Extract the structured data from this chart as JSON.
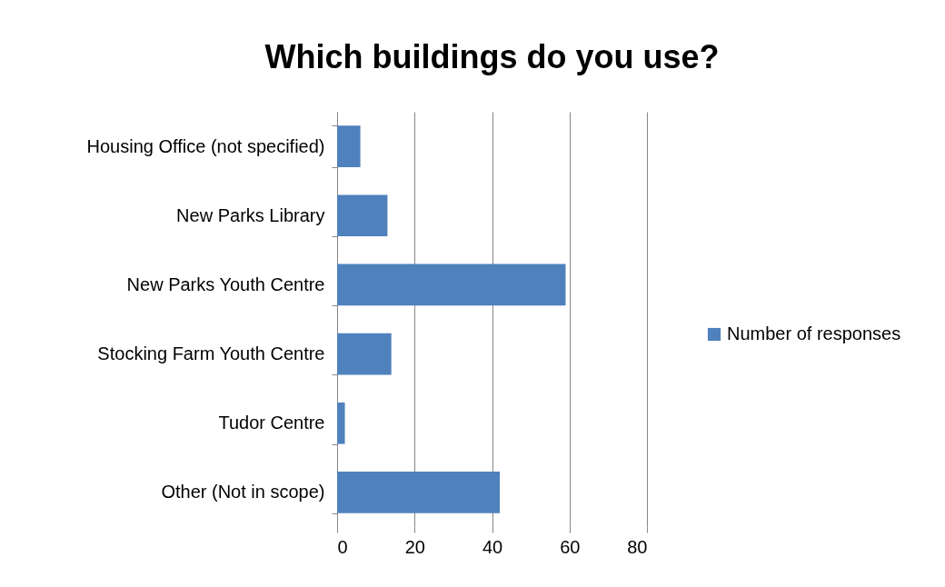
{
  "chart_data": {
    "type": "bar",
    "orientation": "horizontal",
    "title": "Which buildings do you use?",
    "categories": [
      "Housing Office (not specified)",
      "New Parks Library",
      "New Parks Youth Centre",
      "Stocking Farm Youth Centre",
      "Tudor Centre",
      "Other (Not in scope)"
    ],
    "series": [
      {
        "name": "Number of responses",
        "color": "#4f81bd",
        "values": [
          6,
          13,
          59,
          14,
          2,
          42
        ]
      }
    ],
    "xlim": [
      0,
      80
    ],
    "xticks": [
      0,
      20,
      40,
      60,
      80
    ],
    "grid": "x",
    "legend": "right"
  }
}
